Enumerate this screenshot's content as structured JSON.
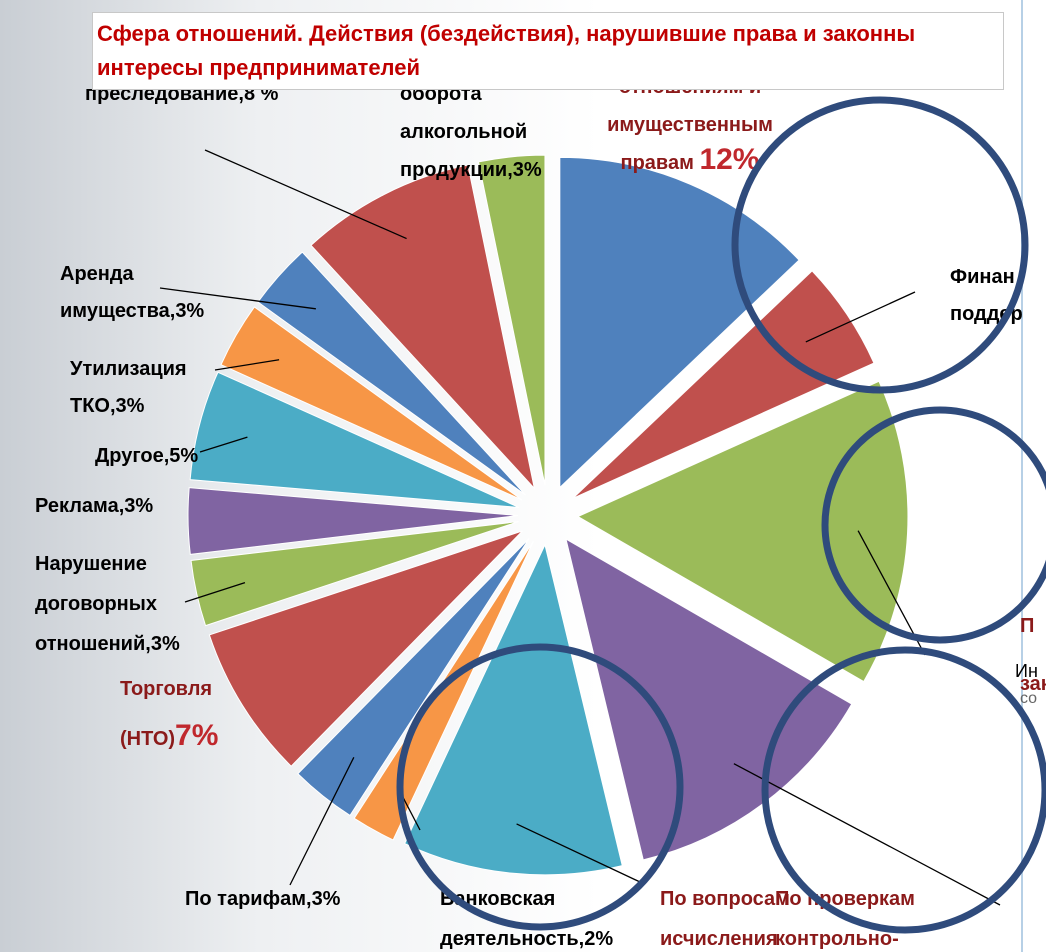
{
  "chart_data": {
    "type": "pie",
    "title": "Сфера отношений. Действия (бездействия), нарушившие права и законны интересы предпринимателей",
    "categories": [
      [
        "отношениям и",
        "имущественным",
        "правам "
      ],
      [
        "Финан",
        "поддер"
      ],
      [
        "П",
        "закупк"
      ],
      [
        "По проверкам",
        "контрольно-"
      ],
      [
        "По вопросам",
        "исчисления"
      ],
      [
        "Банковская",
        "деятельность,"
      ],
      [
        "По тарифам,"
      ],
      [
        "Торговля",
        "(НТО)"
      ],
      [
        "Нарушение",
        "договорных",
        "отношений,"
      ],
      [
        "Реклама,"
      ],
      [
        "Другое,"
      ],
      [
        "Утилизация",
        "ТКО,"
      ],
      [
        "Аренда",
        "имущества,"
      ],
      [
        "преследование,"
      ],
      [
        "оборота",
        "алкогольной",
        "продукции,"
      ]
    ],
    "values": [
      12,
      5,
      14,
      12,
      10,
      2,
      3,
      7,
      3,
      3,
      5,
      3,
      3,
      8,
      3
    ],
    "value_labels": [
      "12%",
      null,
      null,
      null,
      null,
      "2%",
      "3%",
      "7%",
      "3%",
      "3%",
      "5%",
      "3%",
      "3%",
      "8 %",
      "3%"
    ],
    "colors": [
      "#4f81bd",
      "#c0504d",
      "#9bbb59",
      "#8064a2",
      "#4bacc6",
      "#f79646",
      "#4f81bd",
      "#c0504d",
      "#9bbb59",
      "#8064a2",
      "#4bacc6",
      "#f79646",
      "#4f81bd",
      "#c0504d",
      "#9bbb59"
    ],
    "annotations": [
      "Ин",
      "со"
    ]
  }
}
